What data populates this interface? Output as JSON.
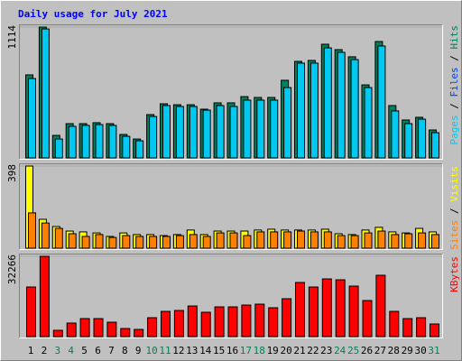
{
  "title": "Daily usage for July 2021",
  "legend_separator": "/",
  "chart_data": [
    {
      "type": "bar",
      "ylim": [
        0,
        1114
      ],
      "yticks": [
        1114
      ],
      "legend_extra": {
        "name": "Files",
        "color": "#0040ff"
      },
      "series": [
        {
          "name": "Hits",
          "color": "#00805c",
          "values": [
            707,
            1114,
            192,
            292,
            292,
            300,
            292,
            200,
            161,
            369,
            461,
            453,
            453,
            415,
            469,
            469,
            522,
            515,
            515,
            661,
            822,
            830,
            968,
            922,
            861,
            622,
            991,
            446,
            323,
            346,
            238
          ]
        },
        {
          "name": "Pages",
          "color": "#00c8f0",
          "values": [
            676,
            1098,
            161,
            269,
            277,
            284,
            277,
            184,
            146,
            353,
            446,
            438,
            438,
            407,
            446,
            438,
            492,
            492,
            492,
            599,
            807,
            807,
            937,
            899,
            837,
            599,
            953,
            400,
            292,
            330,
            215
          ]
        }
      ]
    },
    {
      "type": "bar",
      "ylim": [
        0,
        398
      ],
      "yticks": [
        398
      ],
      "series": [
        {
          "name": "Visits",
          "color": "#ffff00",
          "values": [
            398,
            140,
            105,
            83,
            79,
            74,
            57,
            74,
            66,
            66,
            61,
            66,
            88,
            66,
            83,
            83,
            83,
            88,
            92,
            88,
            88,
            88,
            92,
            70,
            66,
            88,
            101,
            79,
            74,
            96,
            79
          ]
        },
        {
          "name": "Sites",
          "color": "#ff8000",
          "values": [
            171,
            122,
            96,
            70,
            57,
            66,
            52,
            61,
            57,
            57,
            57,
            61,
            66,
            57,
            74,
            74,
            61,
            79,
            79,
            79,
            83,
            79,
            79,
            61,
            61,
            74,
            83,
            66,
            70,
            74,
            66
          ]
        }
      ]
    },
    {
      "type": "bar",
      "ylim": [
        0,
        32266
      ],
      "yticks": [
        32266
      ],
      "categories": [
        "1",
        "2",
        "3",
        "4",
        "5",
        "6",
        "7",
        "8",
        "9",
        "10",
        "11",
        "12",
        "13",
        "14",
        "15",
        "16",
        "17",
        "18",
        "19",
        "20",
        "21",
        "22",
        "23",
        "24",
        "25",
        "26",
        "27",
        "28",
        "29",
        "30",
        "31"
      ],
      "category_colors": [
        "#000000",
        "#000000",
        "#00805c",
        "#00805c",
        "#000000",
        "#000000",
        "#000000",
        "#000000",
        "#000000",
        "#00805c",
        "#00805c",
        "#000000",
        "#000000",
        "#000000",
        "#000000",
        "#000000",
        "#00805c",
        "#00805c",
        "#000000",
        "#000000",
        "#000000",
        "#000000",
        "#000000",
        "#00805c",
        "#00805c",
        "#000000",
        "#000000",
        "#000000",
        "#000000",
        "#000000",
        "#00805c"
      ],
      "series": [
        {
          "name": "KBytes",
          "color": "#ff0000",
          "values": [
            19940,
            32266,
            2540,
            5440,
            7250,
            7250,
            5800,
            3260,
            2900,
            7610,
            10150,
            10510,
            12320,
            9790,
            11960,
            11960,
            12690,
            13050,
            11600,
            15230,
            21760,
            19940,
            23200,
            22840,
            20300,
            14500,
            24650,
            10150,
            7250,
            7610,
            5080
          ]
        }
      ]
    }
  ]
}
